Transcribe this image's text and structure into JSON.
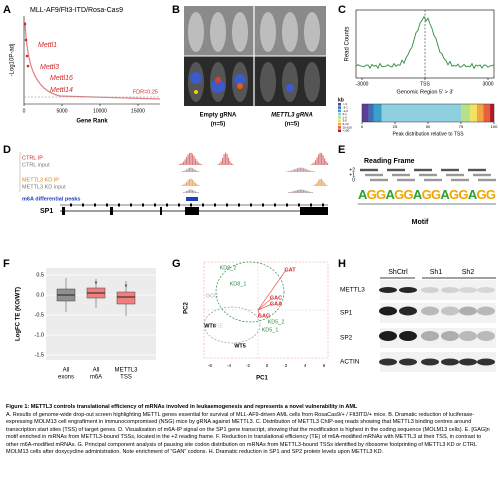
{
  "panels": {
    "a": {
      "letter": "A",
      "title": "MLL-AF9/Flt3-ITD/Rosa-Cas9",
      "y_label": "-Log10P-adj",
      "x_label": "Gene Rank",
      "x_ticks": [
        "0",
        "5000",
        "10000",
        "15000"
      ],
      "genes": [
        "Mettl1",
        "Mettl3",
        "Mettl16",
        "Mettl14"
      ],
      "threshold": "FDR=0.25"
    },
    "b": {
      "letter": "B",
      "groups": [
        {
          "label": "Empty gRNA",
          "n": "(n=5)"
        },
        {
          "label": "METTL3 gRNA",
          "n": "(n=5)"
        }
      ]
    },
    "c": {
      "letter": "C",
      "y_label": "Read Counts",
      "x_label": "Genomic Region 5' > 3'",
      "x_ticks": [
        "-3000",
        "TSS",
        "3000"
      ],
      "kb_label": "kb",
      "kb_bins": [
        "<-3",
        "-3-1",
        "-1-0",
        "0-1",
        "1-3",
        "3-5",
        "5-10",
        "10-100",
        ">100"
      ],
      "peak_ticks": [
        "0",
        "25",
        "50",
        "75",
        "100"
      ],
      "peak_label": "Peak distribution relative to TSS"
    },
    "d": {
      "letter": "D",
      "tracks": [
        "CTRL IP",
        "CTRL input",
        "METTL3 KD IP",
        "METTL3 KD input",
        "m6A differential peaks"
      ],
      "gene": "SP1"
    },
    "e": {
      "letter": "E",
      "title": "Reading Frame",
      "frames": [
        "+2",
        "+1",
        "0"
      ],
      "motif": "AGGAGGAGGAGGAGG",
      "motif_label": "Motif"
    },
    "f": {
      "letter": "F",
      "y_label": "LogFC TE (KO/WT)",
      "y_ticks": [
        "0.5",
        "0.0",
        "-0.5",
        "-1.0",
        "-1.5"
      ],
      "categories": [
        [
          "All",
          "exons"
        ],
        [
          "All",
          "m6A"
        ],
        [
          "METTL3",
          "TSS"
        ]
      ],
      "significance": [
        "*",
        "*"
      ]
    },
    "g": {
      "letter": "G",
      "x_label": "PC1",
      "y_label": "PC2",
      "x_ticks": [
        "-6",
        "-4",
        "-2",
        "0",
        "2",
        "4",
        "6"
      ],
      "points": [
        "KD8_2",
        "GAT",
        "KD8_1",
        "GAC",
        "GAA",
        "GAG",
        "KD5_2",
        "KD5_1",
        "GCC",
        "WT8",
        "TSE",
        "WT5"
      ]
    },
    "h": {
      "letter": "H",
      "columns": [
        "ShCtrl",
        "Sh1",
        "Sh2"
      ],
      "rows": [
        "METTL3",
        "SP1",
        "SP2",
        "ACTIN"
      ]
    }
  },
  "caption": {
    "title": "Figure 1: METTL3 controls translational efficiency of mRNAs involved in leukaemogenesis and represents a novel  vulnerability in AML",
    "body": "A. Results of genome-wide drop-out screen highlighting METTL genes essential for survival of MLL-AF9-driven  AML cells from RosaCas9/+ / Flt3ITD/+ mice. B. Dramatic reduction of luciferase-expressing MOLM13 cell engraftment in immunocompromised (NSG) mice by gRNA against METTL3. C. Distribution of METTL3 ChIP-seq reads showing that METTL3 binding centres around transcription start sites (TSS) of target genes. D. Visualisation of m6A-IP signal on the SP1 gene transcript, showing that the modification is highest in the coding sequence (MOLM13 cells). E. [GAG]n motif enriched in mRNAs from METTL3-bound TSSs, located in the +2 reading frame. F. Reduction in translational efficiency (TE) of m6A-modified mRNAs with METTL3 at their TSS, in contrast to other m6A-modified mRNAs. G. Principal component analysis of pausing site codon distribution on mRNAs from METTL3-bound TSSs identified by ribosome footprinting of METTL3 KD or CTRL MOLM13 cells after doxycycline administration. Note enrichment of \"GAN\" codons. H. Dramatic reduction in SP1 and SP2 protein levels upon METTL3 KD."
  }
}
